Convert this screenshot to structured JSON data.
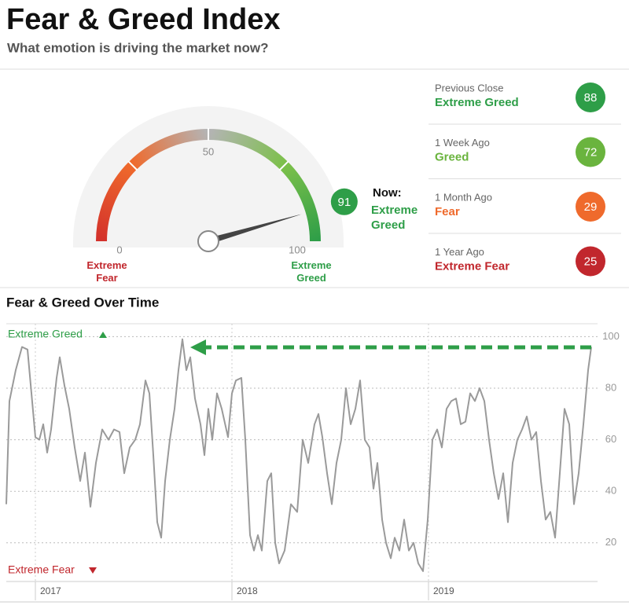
{
  "header": {
    "title": "Fear & Greed Index",
    "subtitle": "What emotion is driving the market now?"
  },
  "chart_data": [
    {
      "type": "gauge",
      "value": 91,
      "ylim": [
        0,
        100
      ],
      "yticks": [
        0,
        50,
        100
      ],
      "min_label": "Extreme Fear",
      "max_label": "Extreme Greed",
      "min_color": "#c1272d",
      "max_color": "#2e9e48",
      "now_label": "Now:",
      "rating": "Extreme Greed",
      "color": "#2e9e48",
      "band_colors": [
        "#d3312b",
        "#ef6a2c",
        "#b4b4b4",
        "#7cc04a",
        "#2e9e48"
      ]
    },
    {
      "type": "line",
      "title": "Fear & Greed Over Time",
      "top_label": "Extreme Greed",
      "bottom_label": "Extreme Fear",
      "x": [
        2016.852,
        2016.868,
        2016.9,
        2016.932,
        2016.96,
        2016.98,
        2017,
        2017.02,
        2017.04,
        2017.06,
        2017.08,
        2017.108,
        2017.124,
        2017.148,
        2017.172,
        2017.2,
        2017.228,
        2017.252,
        2017.28,
        2017.308,
        2017.34,
        2017.372,
        2017.4,
        2017.428,
        2017.452,
        2017.48,
        2017.508,
        2017.532,
        2017.56,
        2017.58,
        2017.6,
        2017.62,
        2017.64,
        2017.66,
        2017.684,
        2017.708,
        2017.728,
        2017.748,
        2017.768,
        2017.788,
        2017.812,
        2017.84,
        2017.86,
        2017.88,
        2017.9,
        2017.924,
        2017.948,
        2017.98,
        2018,
        2018.02,
        2018.048,
        2018.068,
        2018.092,
        2018.112,
        2018.132,
        2018.152,
        2018.18,
        2018.2,
        2018.22,
        2018.24,
        2018.268,
        2018.3,
        2018.332,
        2018.36,
        2018.388,
        2018.42,
        2018.44,
        2018.46,
        2018.484,
        2018.508,
        2018.532,
        2018.556,
        2018.58,
        2018.604,
        2018.628,
        2018.652,
        2018.676,
        2018.7,
        2018.72,
        2018.74,
        2018.764,
        2018.784,
        2018.808,
        2018.828,
        2018.852,
        2018.876,
        2018.9,
        2018.924,
        2018.948,
        2018.972,
        2018.996,
        2019.02,
        2019.044,
        2019.068,
        2019.092,
        2019.116,
        2019.14,
        2019.164,
        2019.188,
        2019.212,
        2019.236,
        2019.26,
        2019.284,
        2019.308,
        2019.332,
        2019.356,
        2019.38,
        2019.404,
        2019.428,
        2019.452,
        2019.476,
        2019.5,
        2019.524,
        2019.548,
        2019.572,
        2019.596,
        2019.62,
        2019.644,
        2019.668,
        2019.692,
        2019.716,
        2019.74,
        2019.764,
        2019.788,
        2019.812,
        2019.828
      ],
      "values": [
        35,
        75,
        87,
        96,
        95,
        78,
        61,
        60,
        66,
        55,
        64,
        84,
        92,
        81,
        72,
        57,
        44,
        55,
        34,
        51,
        64,
        60,
        64,
        63,
        47,
        57,
        60,
        66,
        83,
        78,
        54,
        28,
        22,
        44,
        60,
        72,
        87,
        99,
        87,
        92,
        76,
        66,
        54,
        72,
        60,
        78,
        72,
        61,
        78,
        83,
        84,
        60,
        23,
        17,
        23,
        17,
        44,
        47,
        20,
        12,
        17,
        35,
        32,
        60,
        51,
        66,
        70,
        61,
        47,
        35,
        51,
        60,
        80,
        66,
        72,
        83,
        60,
        57,
        41,
        51,
        29,
        20,
        14,
        22,
        17,
        29,
        17,
        20,
        12,
        9,
        29,
        60,
        64,
        57,
        72,
        75,
        76,
        66,
        67,
        78,
        75,
        80,
        75,
        60,
        47,
        37,
        47,
        28,
        51,
        60,
        64,
        69,
        60,
        63,
        44,
        29,
        32,
        22,
        47,
        72,
        66,
        35,
        47,
        66,
        87,
        96
      ],
      "color": "#9a9a9a",
      "xlim": [
        2016.852,
        2019.86
      ],
      "xticks": [
        2017,
        2018,
        2019
      ],
      "ylim": [
        5,
        105
      ],
      "yticks": [
        20,
        40,
        60,
        80,
        100
      ],
      "grid": true
    }
  ],
  "history": [
    {
      "label": "Previous Close",
      "rating": "Extreme Greed",
      "value": 88,
      "color": "#2e9e48"
    },
    {
      "label": "1 Week Ago",
      "rating": "Greed",
      "value": 72,
      "color": "#6ab43e"
    },
    {
      "label": "1 Month Ago",
      "rating": "Fear",
      "value": 29,
      "color": "#ef6a2c"
    },
    {
      "label": "1 Year Ago",
      "rating": "Extreme Fear",
      "value": 25,
      "color": "#c1272d"
    }
  ]
}
